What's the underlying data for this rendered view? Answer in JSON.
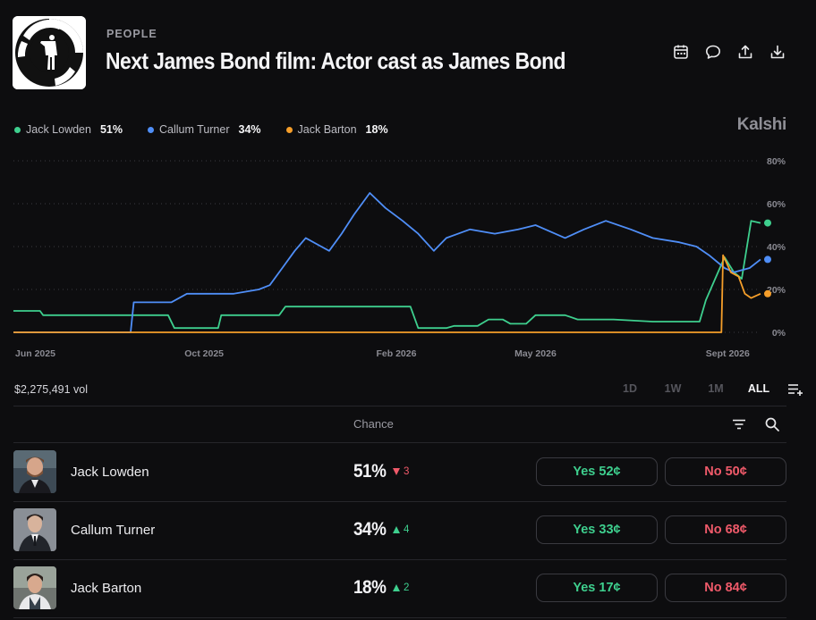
{
  "header": {
    "category": "PEOPLE",
    "title": "Next James Bond film: Actor cast as James Bond",
    "icons": [
      "calendar-icon",
      "comment-icon",
      "share-icon",
      "download-icon"
    ]
  },
  "brand": "Kalshi",
  "legend": [
    {
      "name": "Jack Lowden",
      "value": "51%",
      "color": "#3ecf8e"
    },
    {
      "name": "Callum Turner",
      "value": "34%",
      "color": "#4f8ef7"
    },
    {
      "name": "Jack Barton",
      "value": "18%",
      "color": "#f59e2a"
    }
  ],
  "chart_data": {
    "type": "line",
    "x_ticks": [
      "Jun 2025",
      "Oct 2025",
      "Feb 2026",
      "May 2026",
      "Sept 2026"
    ],
    "y_ticks": [
      "80%",
      "60%",
      "40%",
      "20%",
      "0%"
    ],
    "ylim": [
      0,
      80
    ],
    "grid": true,
    "series": [
      {
        "name": "Jack Lowden",
        "color": "#3ecf8e",
        "x": [
          "2025-06-01",
          "2025-06-18",
          "2025-06-20",
          "2025-08-15",
          "2025-08-20",
          "2025-09-08",
          "2025-09-12",
          "2025-10-10",
          "2025-10-12",
          "2025-11-18",
          "2025-11-22",
          "2025-12-20",
          "2025-12-22",
          "2026-02-10",
          "2026-02-15",
          "2026-03-05",
          "2026-03-10",
          "2026-03-25",
          "2026-04-01",
          "2026-04-10",
          "2026-04-15",
          "2026-04-25",
          "2026-05-01",
          "2026-05-20",
          "2026-05-28",
          "2026-06-20",
          "2026-07-15",
          "2026-08-05",
          "2026-08-12",
          "2026-08-14",
          "2026-08-18",
          "2026-08-30",
          "2026-09-05",
          "2026-09-10",
          "2026-09-16",
          "2026-09-22"
        ],
        "y": [
          10,
          10,
          8,
          8,
          8,
          8,
          2,
          2,
          8,
          8,
          12,
          12,
          12,
          12,
          2,
          2,
          3,
          3,
          6,
          6,
          4,
          4,
          8,
          8,
          6,
          6,
          5,
          5,
          5,
          5,
          15,
          35,
          28,
          25,
          52,
          51
        ]
      },
      {
        "name": "Callum Turner",
        "color": "#4f8ef7",
        "x": [
          "2025-06-01",
          "2025-08-15",
          "2025-08-17",
          "2025-09-05",
          "2025-09-10",
          "2025-09-20",
          "2025-10-10",
          "2025-10-20",
          "2025-11-05",
          "2025-11-12",
          "2025-11-20",
          "2025-11-28",
          "2025-12-05",
          "2025-12-15",
          "2025-12-20",
          "2025-12-28",
          "2026-01-05",
          "2026-01-15",
          "2026-01-25",
          "2026-02-05",
          "2026-02-15",
          "2026-02-25",
          "2026-03-05",
          "2026-03-20",
          "2026-04-05",
          "2026-04-20",
          "2026-05-01",
          "2026-05-20",
          "2026-06-01",
          "2026-06-15",
          "2026-07-01",
          "2026-07-15",
          "2026-08-01",
          "2026-08-12",
          "2026-08-20",
          "2026-08-30",
          "2026-09-05",
          "2026-09-15",
          "2026-09-22"
        ],
        "y": [
          0,
          0,
          14,
          14,
          14,
          18,
          18,
          18,
          20,
          22,
          30,
          38,
          44,
          40,
          38,
          46,
          55,
          65,
          58,
          52,
          46,
          38,
          44,
          48,
          46,
          48,
          50,
          44,
          48,
          52,
          48,
          44,
          42,
          40,
          36,
          30,
          28,
          30,
          34
        ]
      },
      {
        "name": "Jack Barton",
        "color": "#f59e2a",
        "x": [
          "2025-06-01",
          "2026-08-28",
          "2026-08-29",
          "2026-09-03",
          "2026-09-08",
          "2026-09-12",
          "2026-09-16",
          "2026-09-22"
        ],
        "y": [
          0,
          0,
          36,
          28,
          26,
          18,
          16,
          18
        ]
      }
    ]
  },
  "volume": "$2,275,491 vol",
  "ranges": [
    "1D",
    "1W",
    "1M",
    "ALL"
  ],
  "active_range": "ALL",
  "table_header": {
    "chance": "Chance"
  },
  "rows": [
    {
      "name": "Jack Lowden",
      "pct": "51%",
      "change": "3",
      "direction": "down",
      "yes": "Yes 52¢",
      "no": "No 50¢"
    },
    {
      "name": "Callum Turner",
      "pct": "34%",
      "change": "4",
      "direction": "up",
      "yes": "Yes 33¢",
      "no": "No 68¢"
    },
    {
      "name": "Jack Barton",
      "pct": "18%",
      "change": "2",
      "direction": "up",
      "yes": "Yes 17¢",
      "no": "No 84¢"
    }
  ]
}
